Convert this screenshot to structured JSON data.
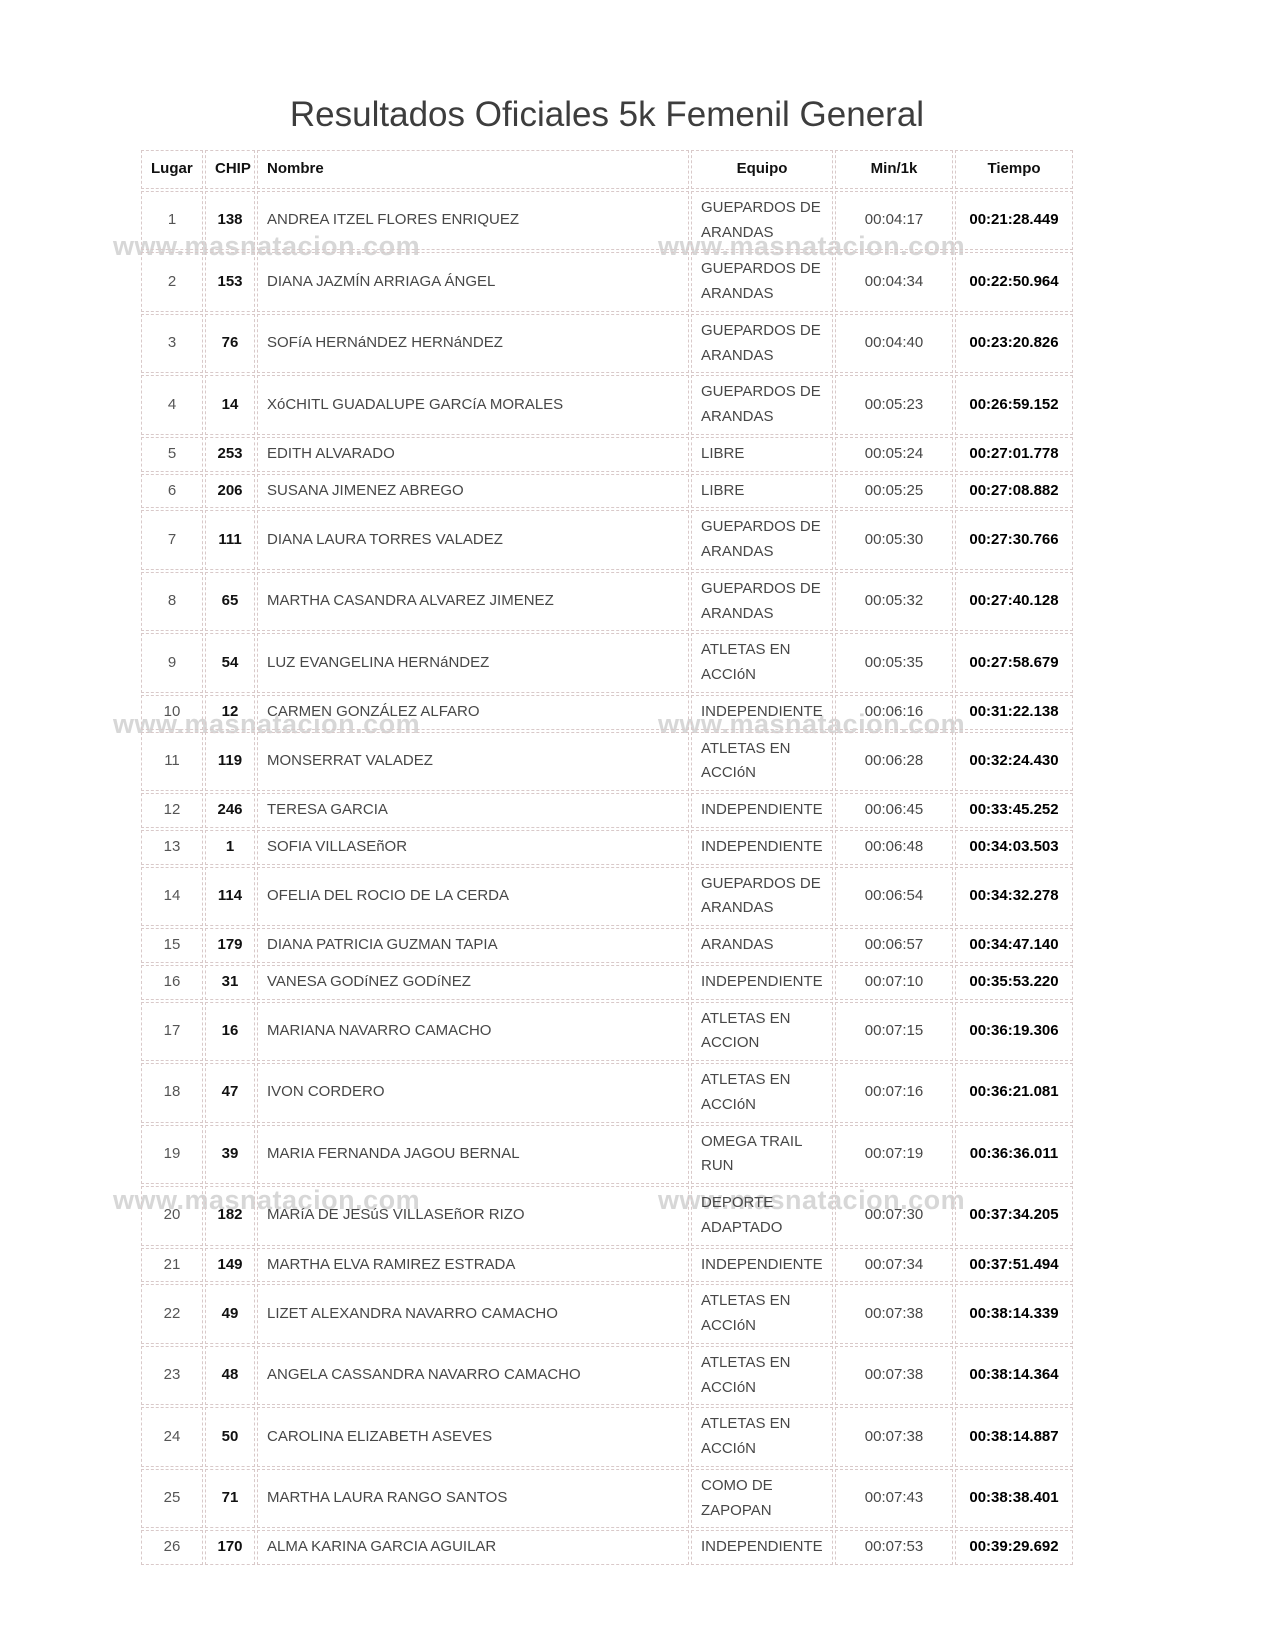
{
  "page": {
    "title": "Resultados Oficiales 5k Femenil General",
    "watermark": "www.masnatacion.com"
  },
  "colors": {
    "title": "#3d3d3d",
    "body_text": "#474747",
    "bold_text": "#111111",
    "cell_border": "#d9c9c9",
    "watermark": "#d7d7d7",
    "background": "#ffffff"
  },
  "table": {
    "headers": {
      "lugar": "Lugar",
      "chip": "CHIP",
      "nombre": "Nombre",
      "equipo": "Equipo",
      "min1k": "Min/1k",
      "tiempo": "Tiempo"
    },
    "rows": [
      {
        "lugar": "1",
        "chip": "138",
        "nombre": "ANDREA ITZEL FLORES ENRIQUEZ",
        "equipo": "GUEPARDOS DE ARANDAS",
        "min1k": "00:04:17",
        "tiempo": "00:21:28.449"
      },
      {
        "lugar": "2",
        "chip": "153",
        "nombre": "DIANA JAZMÍN ARRIAGA ÁNGEL",
        "equipo": "GUEPARDOS DE ARANDAS",
        "min1k": "00:04:34",
        "tiempo": "00:22:50.964"
      },
      {
        "lugar": "3",
        "chip": "76",
        "nombre": "SOFíA HERNáNDEZ HERNáNDEZ",
        "equipo": "GUEPARDOS DE ARANDAS",
        "min1k": "00:04:40",
        "tiempo": "00:23:20.826"
      },
      {
        "lugar": "4",
        "chip": "14",
        "nombre": "XóCHITL GUADALUPE GARCíA MORALES",
        "equipo": "GUEPARDOS DE ARANDAS",
        "min1k": "00:05:23",
        "tiempo": "00:26:59.152"
      },
      {
        "lugar": "5",
        "chip": "253",
        "nombre": "EDITH ALVARADO",
        "equipo": "LIBRE",
        "min1k": "00:05:24",
        "tiempo": "00:27:01.778"
      },
      {
        "lugar": "6",
        "chip": "206",
        "nombre": "SUSANA JIMENEZ ABREGO",
        "equipo": "LIBRE",
        "min1k": "00:05:25",
        "tiempo": "00:27:08.882"
      },
      {
        "lugar": "7",
        "chip": "111",
        "nombre": "DIANA LAURA TORRES VALADEZ",
        "equipo": "GUEPARDOS DE ARANDAS",
        "min1k": "00:05:30",
        "tiempo": "00:27:30.766"
      },
      {
        "lugar": "8",
        "chip": "65",
        "nombre": "MARTHA CASANDRA ALVAREZ JIMENEZ",
        "equipo": "GUEPARDOS DE ARANDAS",
        "min1k": "00:05:32",
        "tiempo": "00:27:40.128"
      },
      {
        "lugar": "9",
        "chip": "54",
        "nombre": "LUZ EVANGELINA HERNáNDEZ",
        "equipo": "ATLETAS EN ACCIóN",
        "min1k": "00:05:35",
        "tiempo": "00:27:58.679"
      },
      {
        "lugar": "10",
        "chip": "12",
        "nombre": "CARMEN GONZÁLEZ ALFARO",
        "equipo": "INDEPENDIENTE",
        "min1k": "00:06:16",
        "tiempo": "00:31:22.138"
      },
      {
        "lugar": "11",
        "chip": "119",
        "nombre": "MONSERRAT VALADEZ",
        "equipo": "ATLETAS EN ACCIóN",
        "min1k": "00:06:28",
        "tiempo": "00:32:24.430"
      },
      {
        "lugar": "12",
        "chip": "246",
        "nombre": "TERESA GARCIA",
        "equipo": "INDEPENDIENTE",
        "min1k": "00:06:45",
        "tiempo": "00:33:45.252"
      },
      {
        "lugar": "13",
        "chip": "1",
        "nombre": "SOFIA VILLASEñOR",
        "equipo": "INDEPENDIENTE",
        "min1k": "00:06:48",
        "tiempo": "00:34:03.503"
      },
      {
        "lugar": "14",
        "chip": "114",
        "nombre": "OFELIA DEL ROCIO DE LA CERDA",
        "equipo": "GUEPARDOS DE ARANDAS",
        "min1k": "00:06:54",
        "tiempo": "00:34:32.278"
      },
      {
        "lugar": "15",
        "chip": "179",
        "nombre": "DIANA PATRICIA GUZMAN TAPIA",
        "equipo": "ARANDAS",
        "min1k": "00:06:57",
        "tiempo": "00:34:47.140"
      },
      {
        "lugar": "16",
        "chip": "31",
        "nombre": "VANESA GODíNEZ GODíNEZ",
        "equipo": "INDEPENDIENTE",
        "min1k": "00:07:10",
        "tiempo": "00:35:53.220"
      },
      {
        "lugar": "17",
        "chip": "16",
        "nombre": "MARIANA NAVARRO CAMACHO",
        "equipo": "ATLETAS EN ACCION",
        "min1k": "00:07:15",
        "tiempo": "00:36:19.306"
      },
      {
        "lugar": "18",
        "chip": "47",
        "nombre": "IVON CORDERO",
        "equipo": "ATLETAS EN ACCIóN",
        "min1k": "00:07:16",
        "tiempo": "00:36:21.081"
      },
      {
        "lugar": "19",
        "chip": "39",
        "nombre": "MARIA FERNANDA JAGOU BERNAL",
        "equipo": "OMEGA TRAIL RUN",
        "min1k": "00:07:19",
        "tiempo": "00:36:36.011"
      },
      {
        "lugar": "20",
        "chip": "182",
        "nombre": "MARíA DE JESúS VILLASEñOR RIZO",
        "equipo": "DEPORTE ADAPTADO",
        "min1k": "00:07:30",
        "tiempo": "00:37:34.205"
      },
      {
        "lugar": "21",
        "chip": "149",
        "nombre": "MARTHA ELVA RAMIREZ ESTRADA",
        "equipo": "INDEPENDIENTE",
        "min1k": "00:07:34",
        "tiempo": "00:37:51.494"
      },
      {
        "lugar": "22",
        "chip": "49",
        "nombre": "LIZET ALEXANDRA NAVARRO CAMACHO",
        "equipo": "ATLETAS EN ACCIóN",
        "min1k": "00:07:38",
        "tiempo": "00:38:14.339"
      },
      {
        "lugar": "23",
        "chip": "48",
        "nombre": "ANGELA CASSANDRA NAVARRO CAMACHO",
        "equipo": "ATLETAS EN ACCIóN",
        "min1k": "00:07:38",
        "tiempo": "00:38:14.364"
      },
      {
        "lugar": "24",
        "chip": "50",
        "nombre": "CAROLINA ELIZABETH ASEVES",
        "equipo": "ATLETAS EN ACCIóN",
        "min1k": "00:07:38",
        "tiempo": "00:38:14.887"
      },
      {
        "lugar": "25",
        "chip": "71",
        "nombre": "MARTHA LAURA RANGO SANTOS",
        "equipo": "COMO DE ZAPOPAN",
        "min1k": "00:07:43",
        "tiempo": "00:38:38.401"
      },
      {
        "lugar": "26",
        "chip": "170",
        "nombre": "ALMA KARINA GARCIA AGUILAR",
        "equipo": "INDEPENDIENTE",
        "min1k": "00:07:53",
        "tiempo": "00:39:29.692"
      }
    ]
  }
}
